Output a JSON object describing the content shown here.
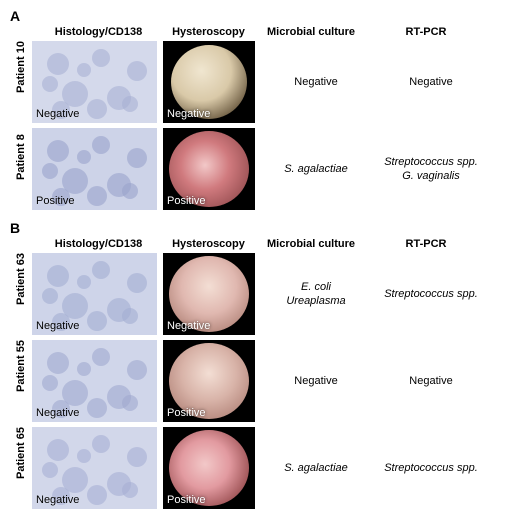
{
  "panels": {
    "A": {
      "letter": "A",
      "headers": {
        "hist": "Histology/CD138",
        "hyst": "Hysteroscopy",
        "cult": "Microbial culture",
        "pcr": "RT-PCR"
      },
      "rows": [
        {
          "patient": "Patient 10",
          "hist_result": "Negative",
          "hist_bg": "#d4d9eb",
          "hist_blob": "#a8b0d4",
          "hyst_result": "Negative",
          "hyst_bg": "#000000",
          "hyst_spot": "#d9c9a8",
          "hyst_style": "pale",
          "culture": "Negative",
          "culture_italic": false,
          "pcr": "Negative",
          "pcr_italic": false
        },
        {
          "patient": "Patient 8",
          "hist_result": "Positive",
          "hist_bg": "#cdd3e8",
          "hist_blob": "#9aa3cc",
          "hyst_result": "Positive",
          "hyst_bg": "#000000",
          "hyst_spot": "#d07a7e",
          "hyst_style": "pink",
          "culture": "S. agalactiae",
          "culture_italic": true,
          "pcr": "Streptococcus spp.\nG. vaginalis",
          "pcr_italic": true
        }
      ]
    },
    "B": {
      "letter": "B",
      "headers": {
        "hist": "Histology/CD138",
        "hyst": "Hysteroscopy",
        "cult": "Microbial culture",
        "pcr": "RT-PCR"
      },
      "rows": [
        {
          "patient": "Patient 63",
          "hist_result": "Negative",
          "hist_bg": "#ced4e9",
          "hist_blob": "#a4add2",
          "hyst_result": "Negative",
          "hyst_bg": "#000000",
          "hyst_spot": "#e0b8b0",
          "hyst_style": "soft",
          "culture": "E. coli\nUreaplasma",
          "culture_italic": true,
          "pcr": "Streptococcus spp.",
          "pcr_italic": true
        },
        {
          "patient": "Patient 55",
          "hist_result": "Negative",
          "hist_bg": "#d0d6ea",
          "hist_blob": "#a0a9cf",
          "hyst_result": "Positive",
          "hyst_bg": "#000000",
          "hyst_spot": "#d8b3a8",
          "hyst_style": "soft",
          "culture": "Negative",
          "culture_italic": false,
          "pcr": "Negative",
          "pcr_italic": false
        },
        {
          "patient": "Patient 65",
          "hist_result": "Negative",
          "hist_bg": "#d2d7ea",
          "hist_blob": "#a6afd3",
          "hyst_result": "Positive",
          "hyst_bg": "#000000",
          "hyst_spot": "#e29aa0",
          "hyst_style": "pink",
          "culture": "S. agalactiae",
          "culture_italic": true,
          "pcr": "Streptococcus spp.",
          "pcr_italic": true
        }
      ]
    }
  }
}
